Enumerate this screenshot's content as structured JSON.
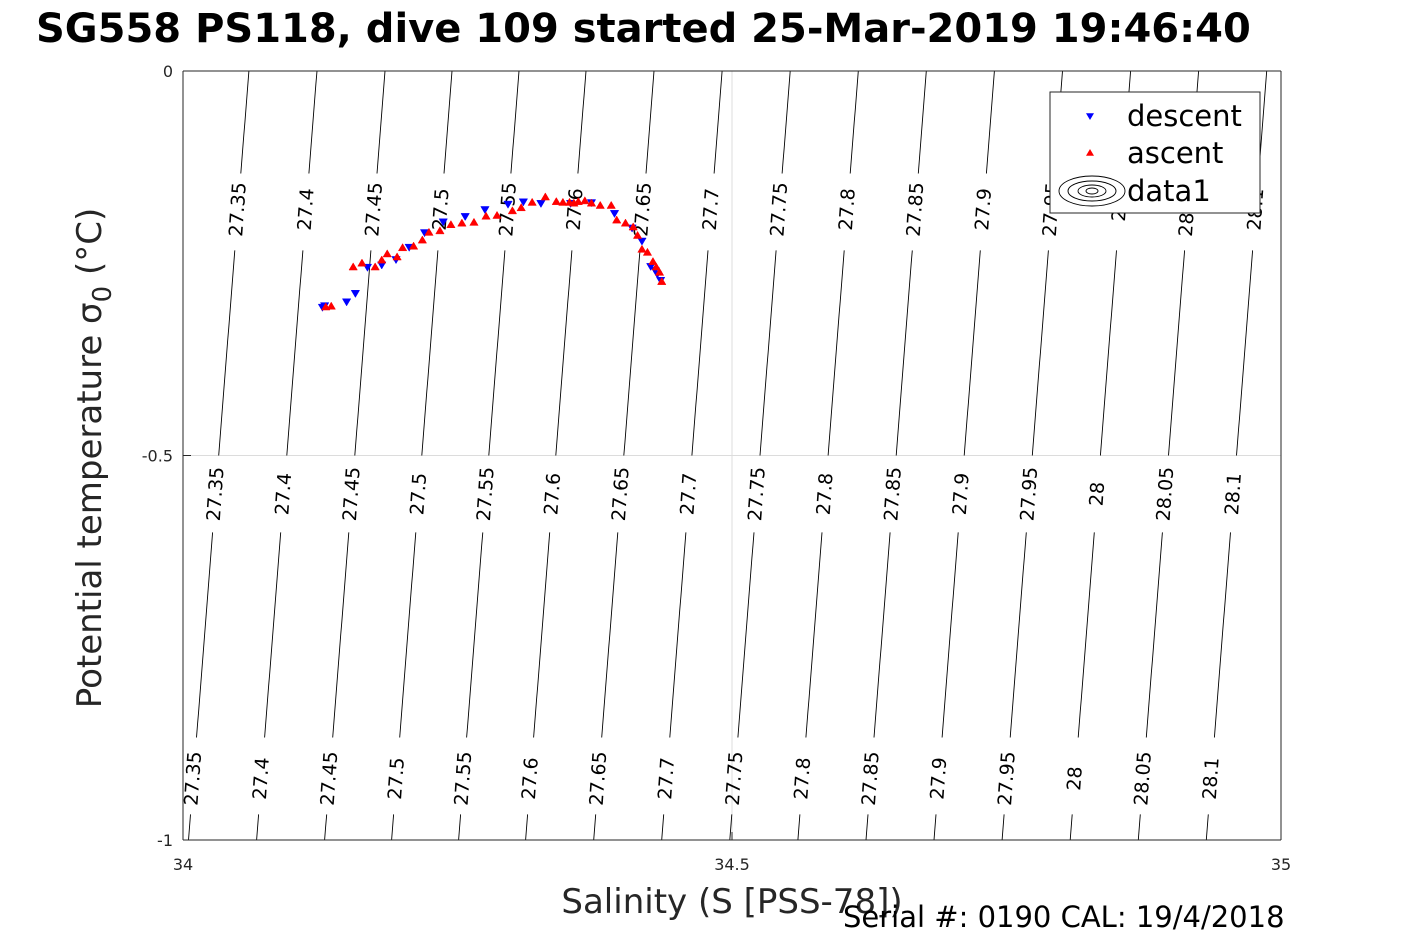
{
  "title": "SG558 PS118, dive 109 started 25-Mar-2019 19:46:40",
  "footer": "Serial #: 0190  CAL: 19/4/2018",
  "chart_data": {
    "type": "scatter",
    "xlabel": "Salinity (S [PSS-78])",
    "ylabel": "Potential temperature σ0 (°C)",
    "xlim": [
      34,
      35
    ],
    "ylim": [
      -1,
      0
    ],
    "xticks": [
      "34",
      "34.5",
      "35"
    ],
    "yticks": [
      "-1",
      "-0.5",
      "0"
    ],
    "grid": true,
    "legend_position": "top-right",
    "legend": [
      "descent",
      "ascent",
      "data1"
    ],
    "colors": {
      "descent": "#0000ff",
      "ascent": "#ff0000",
      "contour": "#000000"
    },
    "contour_levels": [
      "27.35",
      "27.4",
      "27.45",
      "27.5",
      "27.55",
      "27.6",
      "27.65",
      "27.7",
      "27.75",
      "27.8",
      "27.85",
      "27.9",
      "27.95",
      "28",
      "28.05",
      "28.1"
    ],
    "contour_ref_salinity": [
      34.005,
      34.067,
      34.129,
      34.19,
      34.251,
      34.312,
      34.374,
      34.436,
      34.498,
      34.56,
      34.622,
      34.684,
      34.746,
      34.808,
      34.87,
      34.932
    ],
    "contour_slope_per_degC": 0.055,
    "series": [
      {
        "name": "descent",
        "marker": "triangle-down",
        "x": [
          34.127,
          34.129,
          34.149,
          34.157,
          34.168,
          34.181,
          34.194,
          34.206,
          34.22,
          34.237,
          34.257,
          34.275,
          34.296,
          34.31,
          34.326,
          34.353,
          34.372,
          34.393,
          34.409,
          34.418,
          34.426,
          34.43,
          34.432,
          34.435
        ],
        "y": [
          -0.307,
          -0.305,
          -0.3,
          -0.289,
          -0.255,
          -0.252,
          -0.245,
          -0.229,
          -0.21,
          -0.196,
          -0.189,
          -0.18,
          -0.173,
          -0.17,
          -0.172,
          -0.172,
          -0.171,
          -0.185,
          -0.204,
          -0.221,
          -0.254,
          -0.259,
          -0.264,
          -0.272
        ]
      },
      {
        "name": "ascent",
        "marker": "triangle-up",
        "x": [
          34.13,
          34.135,
          34.155,
          34.163,
          34.175,
          34.181,
          34.186,
          34.195,
          34.2,
          34.21,
          34.218,
          34.224,
          34.234,
          34.244,
          34.254,
          34.265,
          34.276,
          34.286,
          34.3,
          34.308,
          34.318,
          34.33,
          34.34,
          34.346,
          34.352,
          34.356,
          34.36,
          34.366,
          34.372,
          34.38,
          34.39,
          34.395,
          34.403,
          34.41,
          34.414,
          34.418,
          34.423,
          34.428,
          34.431,
          34.434,
          34.436
        ],
        "y": [
          -0.307,
          -0.306,
          -0.255,
          -0.25,
          -0.255,
          -0.246,
          -0.238,
          -0.242,
          -0.23,
          -0.228,
          -0.22,
          -0.21,
          -0.208,
          -0.2,
          -0.198,
          -0.197,
          -0.189,
          -0.188,
          -0.182,
          -0.178,
          -0.171,
          -0.164,
          -0.17,
          -0.171,
          -0.171,
          -0.172,
          -0.17,
          -0.169,
          -0.172,
          -0.175,
          -0.175,
          -0.194,
          -0.198,
          -0.203,
          -0.214,
          -0.232,
          -0.236,
          -0.248,
          -0.255,
          -0.262,
          -0.274
        ]
      }
    ]
  }
}
